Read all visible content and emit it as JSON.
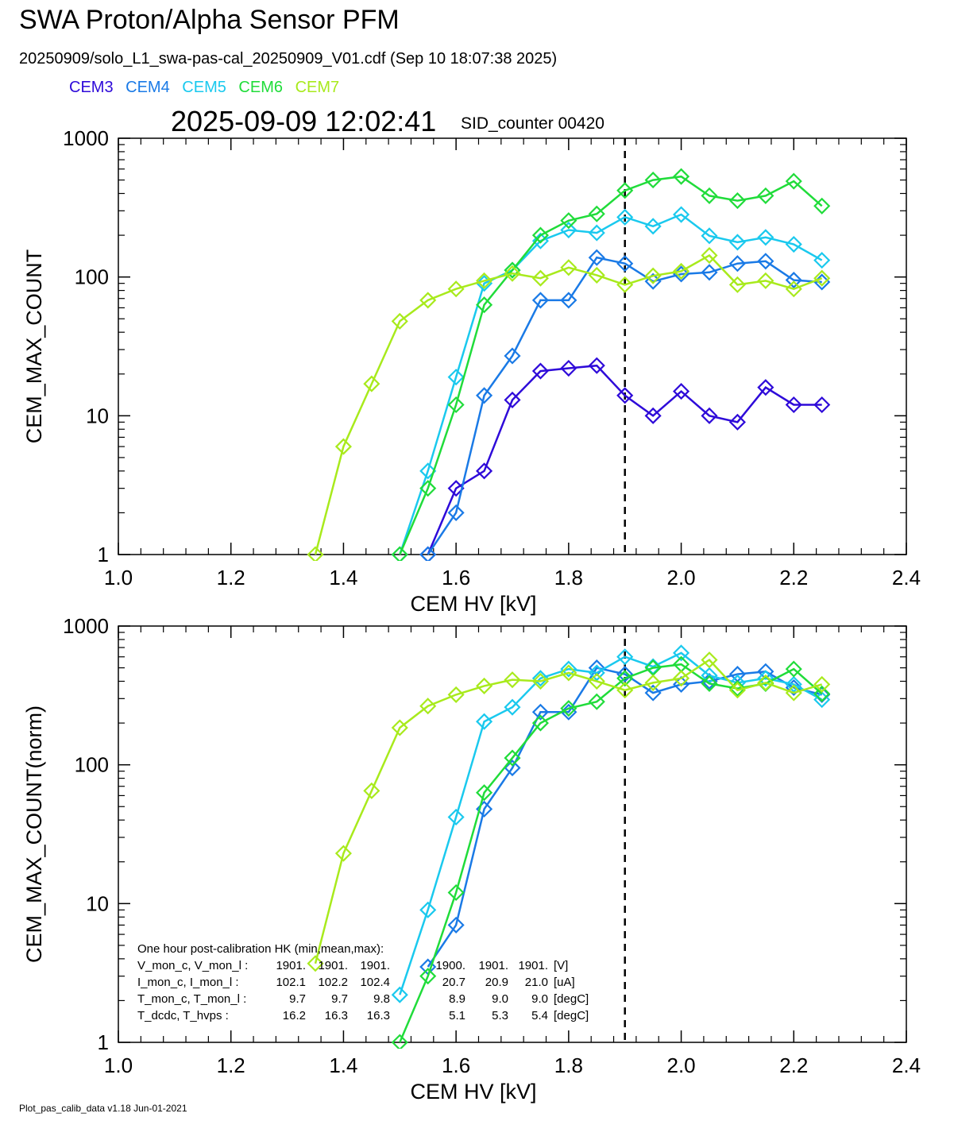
{
  "header": {
    "title": "SWA Proton/Alpha Sensor PFM",
    "subtitle": "20250909/solo_L1_swa-pas-cal_20250909_V01.cdf  (Sep 10 18:07:38 2025)",
    "timestamp": "2025-09-09 12:02:41",
    "sid_counter": "SID_counter 00420"
  },
  "legend": [
    {
      "name": "CEM3",
      "color": "#2e0ad9"
    },
    {
      "name": "CEM4",
      "color": "#1a7ae6"
    },
    {
      "name": "CEM5",
      "color": "#1ac9ee"
    },
    {
      "name": "CEM6",
      "color": "#20dc3a"
    },
    {
      "name": "CEM7",
      "color": "#a8ea1c"
    }
  ],
  "hk_box": {
    "title": "One hour post-calibration HK (min,mean,max):",
    "rows": [
      {
        "label": "V_mon_c, V_mon_l :",
        "a": [
          "1901.",
          "1901.",
          "1901."
        ],
        "b": [
          "1900.",
          "1901.",
          "1901."
        ],
        "unit": "[V]"
      },
      {
        "label": "I_mon_c,  I_mon_l :",
        "a": [
          "102.1",
          "102.2",
          "102.4"
        ],
        "b": [
          "20.7",
          "20.9",
          "21.0"
        ],
        "unit": "[uA]"
      },
      {
        "label": "T_mon_c, T_mon_l :",
        "a": [
          "9.7",
          "9.7",
          "9.8"
        ],
        "b": [
          "8.9",
          "9.0",
          "9.0"
        ],
        "unit": "[degC]"
      },
      {
        "label": "T_dcdc,    T_hvps :",
        "a": [
          "16.2",
          "16.3",
          "16.3"
        ],
        "b": [
          "5.1",
          "5.3",
          "5.4"
        ],
        "unit": "[degC]"
      }
    ]
  },
  "footer": "Plot_pas_calib_data v1.18 Jun-01-2021",
  "chart_data": [
    {
      "type": "line",
      "xlabel": "CEM HV [kV]",
      "ylabel": "CEM_MAX_COUNT",
      "xlim": [
        1.0,
        2.4
      ],
      "ylim": [
        1,
        1000
      ],
      "yscale": "log",
      "x_ticks": [
        "1.0",
        "1.2",
        "1.4",
        "1.6",
        "1.8",
        "2.0",
        "2.2",
        "2.4"
      ],
      "y_ticks": [
        "1",
        "10",
        "100",
        "1000"
      ],
      "vline": 1.9,
      "marker": "diamond",
      "series": [
        {
          "name": "CEM3",
          "x": [
            1.55,
            1.6,
            1.65,
            1.7,
            1.75,
            1.8,
            1.85,
            1.9,
            1.95,
            2.0,
            2.05,
            2.1,
            2.15,
            2.2,
            2.25
          ],
          "values": [
            1,
            3,
            4,
            13,
            21,
            22,
            23,
            14,
            10,
            15,
            10,
            9,
            16,
            12,
            12
          ]
        },
        {
          "name": "CEM4",
          "x": [
            1.55,
            1.6,
            1.65,
            1.7,
            1.75,
            1.8,
            1.85,
            1.9,
            1.95,
            2.0,
            2.05,
            2.1,
            2.15,
            2.2,
            2.25
          ],
          "values": [
            1,
            2,
            14,
            27,
            68,
            68,
            138,
            125,
            93,
            105,
            108,
            125,
            130,
            95,
            92
          ]
        },
        {
          "name": "CEM5",
          "x": [
            1.5,
            1.55,
            1.6,
            1.65,
            1.7,
            1.75,
            1.8,
            1.85,
            1.9,
            1.95,
            2.0,
            2.05,
            2.1,
            2.15,
            2.2,
            2.25
          ],
          "values": [
            1,
            4,
            19,
            90,
            112,
            182,
            218,
            208,
            270,
            232,
            282,
            198,
            178,
            193,
            172,
            132
          ]
        },
        {
          "name": "CEM6",
          "x": [
            1.5,
            1.55,
            1.6,
            1.65,
            1.7,
            1.75,
            1.8,
            1.85,
            1.9,
            1.95,
            2.0,
            2.05,
            2.1,
            2.15,
            2.2,
            2.25
          ],
          "values": [
            1,
            3,
            12,
            63,
            112,
            200,
            255,
            285,
            420,
            500,
            530,
            385,
            355,
            385,
            490,
            325
          ]
        },
        {
          "name": "CEM7",
          "x": [
            1.35,
            1.4,
            1.45,
            1.5,
            1.55,
            1.6,
            1.65,
            1.7,
            1.75,
            1.8,
            1.85,
            1.9,
            1.95,
            2.0,
            2.05,
            2.1,
            2.15,
            2.2,
            2.25
          ],
          "values": [
            1,
            6,
            17,
            48,
            68,
            82,
            94,
            106,
            98,
            117,
            103,
            88,
            102,
            110,
            143,
            88,
            94,
            82,
            98
          ]
        }
      ]
    },
    {
      "type": "line",
      "xlabel": "CEM HV [kV]",
      "ylabel": "CEM_MAX_COUNT(norm)",
      "xlim": [
        1.0,
        2.4
      ],
      "ylim": [
        1,
        1000
      ],
      "yscale": "log",
      "x_ticks": [
        "1.0",
        "1.2",
        "1.4",
        "1.6",
        "1.8",
        "2.0",
        "2.2",
        "2.4"
      ],
      "y_ticks": [
        "1",
        "10",
        "100",
        "1000"
      ],
      "vline": 1.9,
      "marker": "diamond",
      "series": [
        {
          "name": "CEM4",
          "x": [
            1.55,
            1.6,
            1.65,
            1.7,
            1.75,
            1.8,
            1.85,
            1.9,
            1.95,
            2.0,
            2.05,
            2.1,
            2.15,
            2.2,
            2.25
          ],
          "values": [
            3.5,
            7,
            48,
            95,
            240,
            240,
            500,
            450,
            330,
            380,
            400,
            450,
            470,
            360,
            320
          ]
        },
        {
          "name": "CEM5",
          "x": [
            1.5,
            1.55,
            1.6,
            1.65,
            1.7,
            1.75,
            1.8,
            1.85,
            1.9,
            1.95,
            2.0,
            2.05,
            2.1,
            2.15,
            2.2,
            2.25
          ],
          "values": [
            2.2,
            9,
            42,
            205,
            260,
            420,
            490,
            460,
            600,
            510,
            640,
            440,
            390,
            420,
            380,
            295
          ]
        },
        {
          "name": "CEM6",
          "x": [
            1.5,
            1.55,
            1.6,
            1.65,
            1.7,
            1.75,
            1.8,
            1.85,
            1.9,
            1.95,
            2.0,
            2.05,
            2.1,
            2.15,
            2.2,
            2.25
          ],
          "values": [
            1,
            3,
            12,
            63,
            112,
            200,
            255,
            285,
            420,
            500,
            530,
            385,
            355,
            385,
            490,
            325
          ]
        },
        {
          "name": "CEM7",
          "x": [
            1.35,
            1.4,
            1.45,
            1.5,
            1.55,
            1.6,
            1.65,
            1.7,
            1.75,
            1.8,
            1.85,
            1.9,
            1.95,
            2.0,
            2.05,
            2.1,
            2.15,
            2.2,
            2.25
          ],
          "values": [
            3.7,
            23,
            65,
            185,
            265,
            320,
            370,
            410,
            400,
            460,
            400,
            345,
            390,
            420,
            570,
            345,
            390,
            330,
            380
          ]
        }
      ]
    }
  ]
}
